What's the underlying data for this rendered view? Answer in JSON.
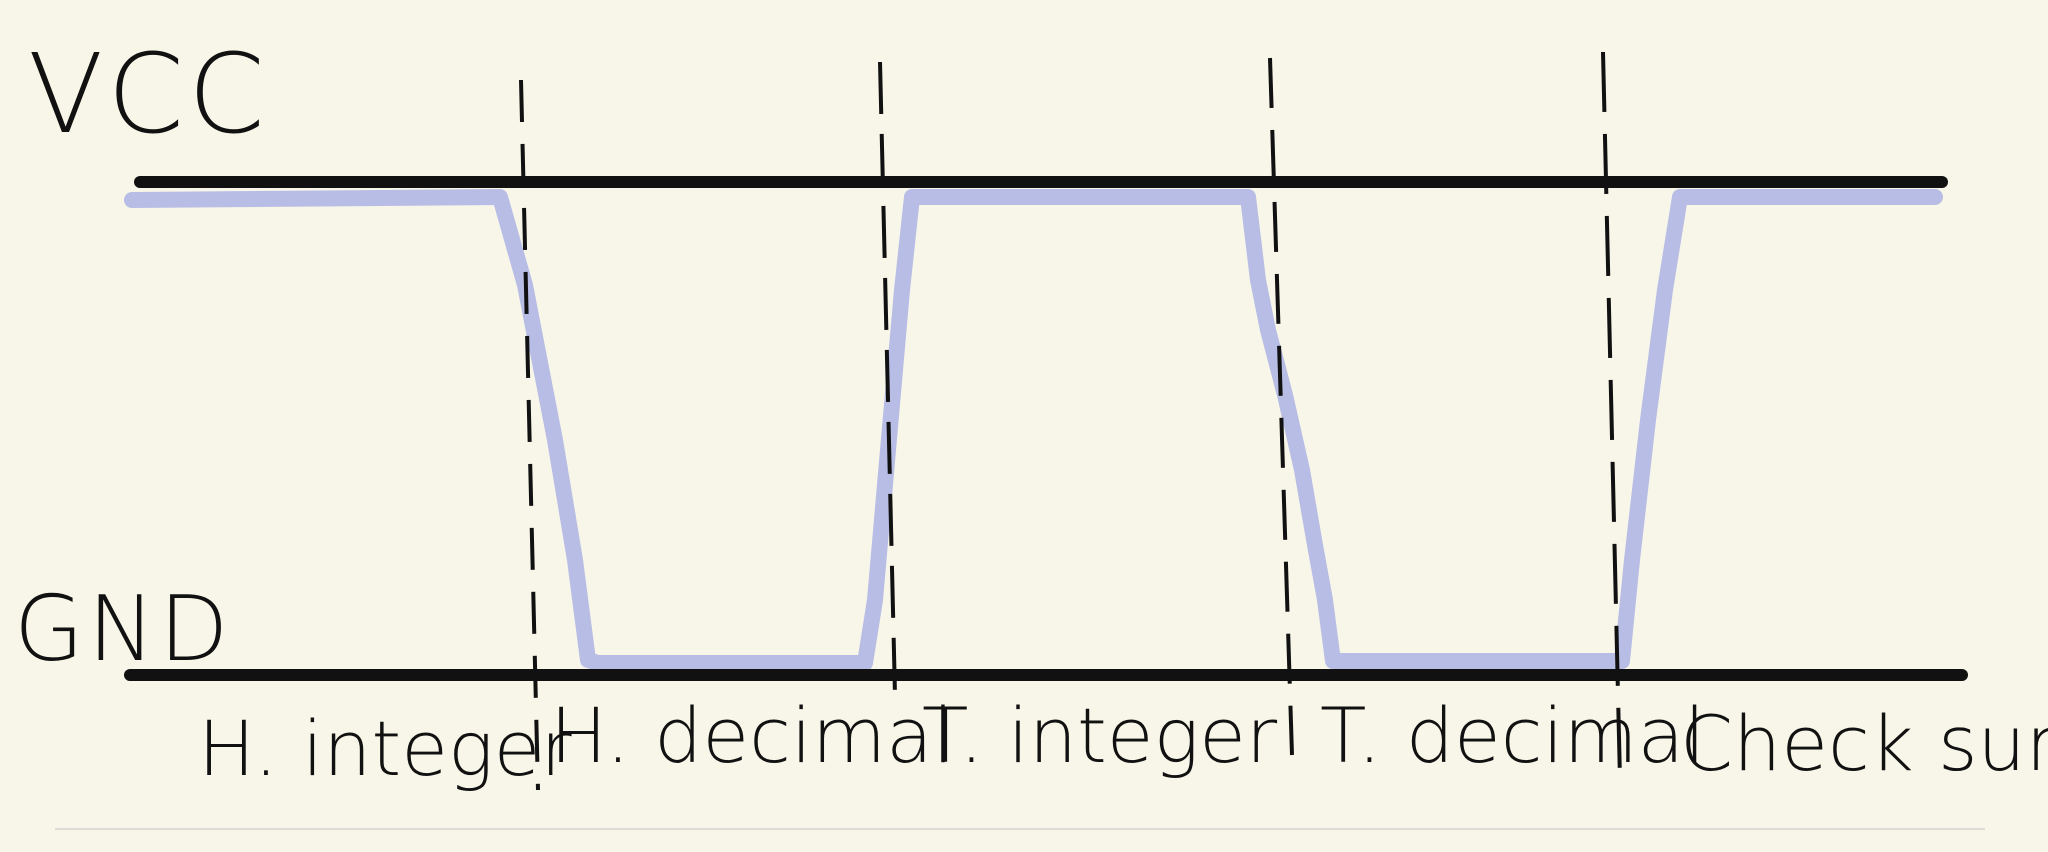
{
  "diagram": {
    "rails": {
      "vcc_label": "VCC",
      "gnd_label": "GND"
    },
    "segments": [
      {
        "label": "H. integer",
        "level": "high"
      },
      {
        "label": "H. decimal",
        "level": "low"
      },
      {
        "label": "T. integer",
        "level": "high"
      },
      {
        "label": "T. decimal",
        "level": "low"
      },
      {
        "label": "Check sum",
        "level": "high"
      }
    ],
    "colors": {
      "background": "#f8f6e8",
      "rail": "#111111",
      "signal": "#b8bde6",
      "divider": "#111111",
      "baseline": "#dcdcd4"
    }
  }
}
